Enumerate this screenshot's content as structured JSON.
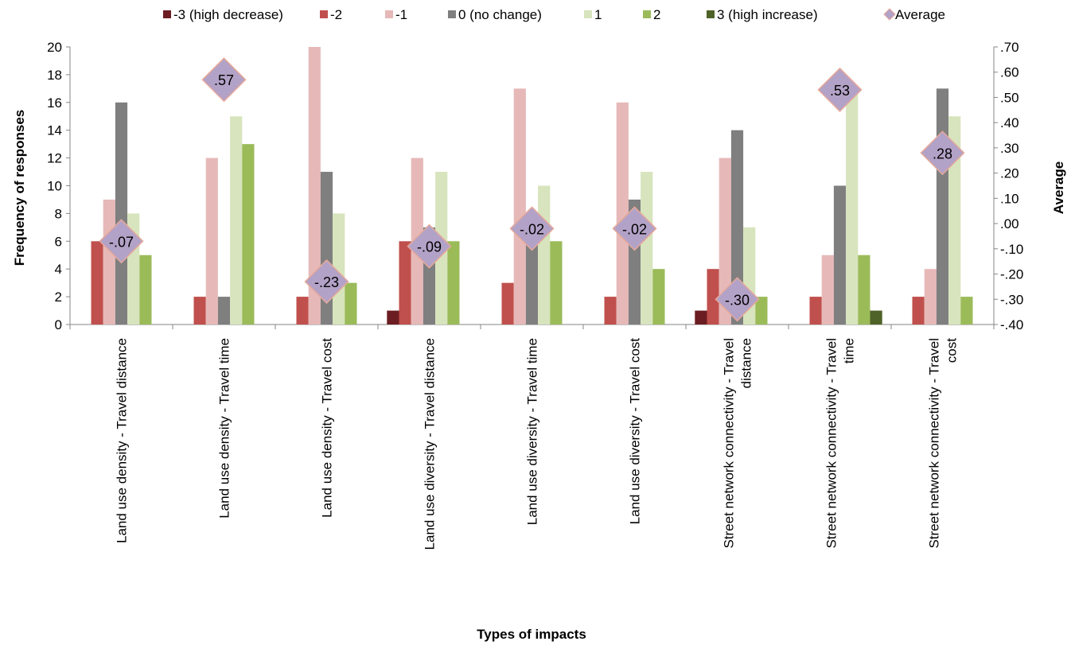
{
  "chart_data": {
    "type": "bar",
    "title": "",
    "xlabel": "Types of impacts",
    "ylabel": "Frequency of responses",
    "y2label": "Average",
    "ylim": [
      0,
      20
    ],
    "y2lim": [
      -0.4,
      0.7
    ],
    "yticks": [
      "0",
      "2",
      "4",
      "6",
      "8",
      "10",
      "12",
      "14",
      "16",
      "18",
      "20"
    ],
    "y2ticks": [
      "-.40",
      "-.30",
      "-.20",
      "-.10",
      ".00",
      ".10",
      ".20",
      ".30",
      ".40",
      ".50",
      ".60",
      ".70"
    ],
    "grid": false,
    "legend_position": "top",
    "categories": [
      [
        "Land use density - Travel distance"
      ],
      [
        "Land use density - Travel time"
      ],
      [
        "Land use density - Travel cost"
      ],
      [
        "Land use diversity - Travel distance"
      ],
      [
        "Land use diversity - Travel time"
      ],
      [
        "Land use diversity - Travel cost"
      ],
      [
        "Street network connectivity - Travel",
        "distance"
      ],
      [
        "Street network connectivity - Travel",
        "time"
      ],
      [
        "Street network connectivity - Travel",
        "cost"
      ]
    ],
    "series": [
      {
        "name": "-3 (high decrease)",
        "color": "#6B1D22",
        "values": [
          0,
          0,
          0,
          1,
          0,
          0,
          1,
          0,
          0
        ]
      },
      {
        "name": "-2",
        "color": "#C0504D",
        "values": [
          6,
          2,
          2,
          6,
          3,
          2,
          4,
          2,
          2
        ]
      },
      {
        "name": "-1",
        "color": "#E6B9B8",
        "values": [
          9,
          12,
          20,
          12,
          17,
          16,
          12,
          5,
          4
        ]
      },
      {
        "name": "0 (no change)",
        "color": "#7F7F7F",
        "values": [
          16,
          2,
          11,
          7,
          6,
          9,
          14,
          10,
          17
        ]
      },
      {
        "name": "1",
        "color": "#D7E4BD",
        "values": [
          8,
          15,
          8,
          11,
          10,
          11,
          7,
          17,
          15
        ]
      },
      {
        "name": "2",
        "color": "#9BBB59",
        "values": [
          5,
          13,
          3,
          6,
          6,
          4,
          2,
          5,
          2
        ]
      },
      {
        "name": "3 (high increase)",
        "color": "#4F6228",
        "values": [
          0,
          0,
          0,
          0,
          0,
          0,
          0,
          1,
          0
        ]
      }
    ],
    "average": {
      "name": "Average",
      "color": "#B3A2C7",
      "border_color": "#E6A89A",
      "values": [
        -0.07,
        0.57,
        -0.23,
        -0.09,
        -0.02,
        -0.02,
        -0.3,
        0.53,
        0.28
      ],
      "labels": [
        "-.07",
        ".57",
        "-.23",
        "-.09",
        "-.02",
        "-.02",
        "-.30",
        ".53",
        ".28"
      ]
    }
  }
}
